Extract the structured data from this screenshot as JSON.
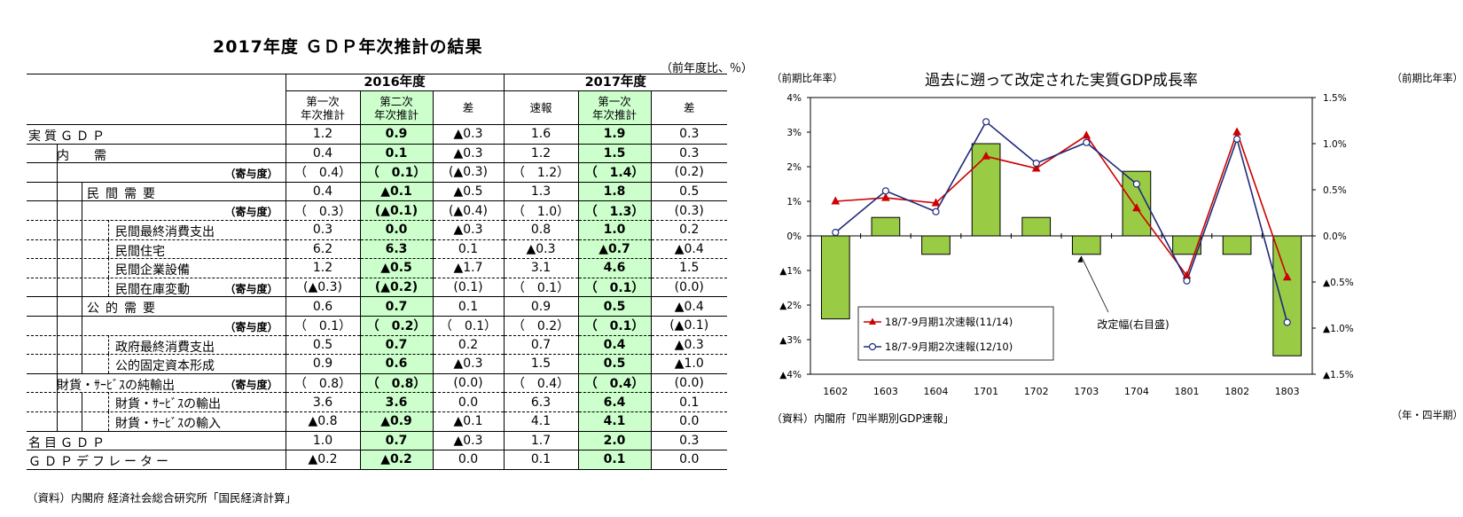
{
  "table": {
    "title": "2017年度 ＧＤＰ年次推計の結果",
    "unit_note": "（前年度比、％）",
    "source": "（資料）内閣府 経済社会総合研究所「国民経済計算」",
    "group_headers": [
      "2016年度",
      "2017年度"
    ],
    "column_headers": [
      "第一次\n年次推計",
      "第二次\n年次推計",
      "差",
      "速報",
      "第一次\n年次推計",
      "差"
    ],
    "rows": [
      {
        "label": "実質ＧＤＰ",
        "level": 0,
        "values": [
          "1.2",
          "0.9",
          "▲0.3",
          "1.6",
          "1.9",
          "0.3"
        ]
      },
      {
        "label": "内　需",
        "level": 1,
        "values": [
          "0.4",
          "0.1",
          "▲0.3",
          "1.2",
          "1.5",
          "0.3"
        ]
      },
      {
        "label": "",
        "note": "（寄与度）",
        "level": 1,
        "values": [
          "（　0.4）",
          "（　0.1）",
          "(▲0.3)",
          "（　1.2）",
          "（　1.4）",
          "(0.2)"
        ]
      },
      {
        "label": "民間需要",
        "level": 2,
        "values": [
          "0.4",
          "▲0.1",
          "▲0.5",
          "1.3",
          "1.8",
          "0.5"
        ]
      },
      {
        "label": "",
        "note": "（寄与度）",
        "level": 2,
        "values": [
          "（　0.3）",
          "(▲0.1)",
          "(▲0.4)",
          "（　1.0）",
          "（　1.3）",
          "(0.3)"
        ]
      },
      {
        "label": "民間最終消費支出",
        "level": 3,
        "values": [
          "0.3",
          "0.0",
          "▲0.3",
          "0.8",
          "1.0",
          "0.2"
        ]
      },
      {
        "label": "民間住宅",
        "level": 3,
        "values": [
          "6.2",
          "6.3",
          "0.1",
          "▲0.3",
          "▲0.7",
          "▲0.4"
        ]
      },
      {
        "label": "民間企業設備",
        "level": 3,
        "values": [
          "1.2",
          "▲0.5",
          "▲1.7",
          "3.1",
          "4.6",
          "1.5"
        ]
      },
      {
        "label": "民間在庫変動",
        "note": "（寄与度）",
        "level": 3,
        "values": [
          "(▲0.3)",
          "(▲0.2)",
          "(0.1)",
          "（　0.1）",
          "（　0.1）",
          "(0.0)"
        ]
      },
      {
        "label": "公的需要",
        "level": 2,
        "values": [
          "0.6",
          "0.7",
          "0.1",
          "0.9",
          "0.5",
          "▲0.4"
        ]
      },
      {
        "label": "",
        "note": "（寄与度）",
        "level": 2,
        "values": [
          "（　0.1）",
          "（　0.2）",
          "（　0.1）",
          "（　0.2）",
          "（　0.1）",
          "(▲0.1)"
        ]
      },
      {
        "label": "政府最終消費支出",
        "level": 3,
        "values": [
          "0.5",
          "0.7",
          "0.2",
          "0.7",
          "0.4",
          "▲0.3"
        ]
      },
      {
        "label": "公的固定資本形成",
        "level": 3,
        "values": [
          "0.9",
          "0.6",
          "▲0.3",
          "1.5",
          "0.5",
          "▲1.0"
        ]
      },
      {
        "label": "財貨・ｻｰﾋﾞｽの純輸出",
        "note": "（寄与度）",
        "level": 1,
        "values": [
          "（　0.8）",
          "（　0.8）",
          "(0.0)",
          "（　0.4）",
          "（　0.4）",
          "(0.0)"
        ]
      },
      {
        "label": "財貨・ｻｰﾋﾞｽの輸出",
        "level": 3,
        "values": [
          "3.6",
          "3.6",
          "0.0",
          "6.3",
          "6.4",
          "0.1"
        ]
      },
      {
        "label": "財貨・ｻｰﾋﾞｽの輸入",
        "level": 3,
        "values": [
          "▲0.8",
          "▲0.9",
          "▲0.1",
          "4.1",
          "4.1",
          "0.0"
        ]
      },
      {
        "label": "名目ＧＤＰ",
        "level": 0,
        "values": [
          "1.0",
          "0.7",
          "▲0.3",
          "1.7",
          "2.0",
          "0.3"
        ]
      },
      {
        "label": "ＧＤＰデフレーター",
        "level": 0,
        "values": [
          "▲0.2",
          "▲0.2",
          "0.0",
          "0.1",
          "0.1",
          "0.0"
        ]
      }
    ]
  },
  "chart_data": {
    "type": "bar+line",
    "title": "過去に遡って改定された実質GDP成長率",
    "left_axis_title": "（前期比年率）",
    "right_axis_title": "（前期比年率）",
    "x_unit": "（年・四半期）",
    "source": "（資料）内閣府「四半期別GDP速報」",
    "categories": [
      "1602",
      "1603",
      "1604",
      "1701",
      "1702",
      "1703",
      "1704",
      "1801",
      "1802",
      "1803"
    ],
    "left_ylim": [
      -4,
      4
    ],
    "right_ylim": [
      -1.5,
      1.5
    ],
    "left_ticks": [
      "4%",
      "3%",
      "2%",
      "1%",
      "0%",
      "▲1%",
      "▲2%",
      "▲3%",
      "▲4%"
    ],
    "right_ticks": [
      "1.5%",
      "1.0%",
      "0.5%",
      "0.0%",
      "▲0.5%",
      "▲1.0%",
      "▲1.5%"
    ],
    "bars": {
      "axis": "right",
      "annotation": "改定幅(右目盛)",
      "values": [
        -0.9,
        0.2,
        -0.2,
        1.0,
        0.2,
        -0.2,
        0.7,
        -0.2,
        -0.2,
        -1.3
      ]
    },
    "series": [
      {
        "name": "18/7-9月期1次速報(11/14)",
        "axis": "left",
        "marker": "triangle",
        "color": "#cc0000",
        "values": [
          1.0,
          1.1,
          0.95,
          2.3,
          1.95,
          2.9,
          0.8,
          -1.15,
          3.0,
          -1.2
        ]
      },
      {
        "name": "18/7-9月期2次速報(12/10)",
        "axis": "left",
        "marker": "circle",
        "color": "#1f2a7a",
        "values": [
          0.1,
          1.3,
          0.7,
          3.3,
          2.1,
          2.7,
          1.5,
          -1.3,
          2.8,
          -2.5
        ]
      }
    ],
    "grid": false,
    "legend_position": "bottom-left",
    "colors": {
      "bar_fill": "#99cc44",
      "bar_stroke": "#000000"
    }
  }
}
